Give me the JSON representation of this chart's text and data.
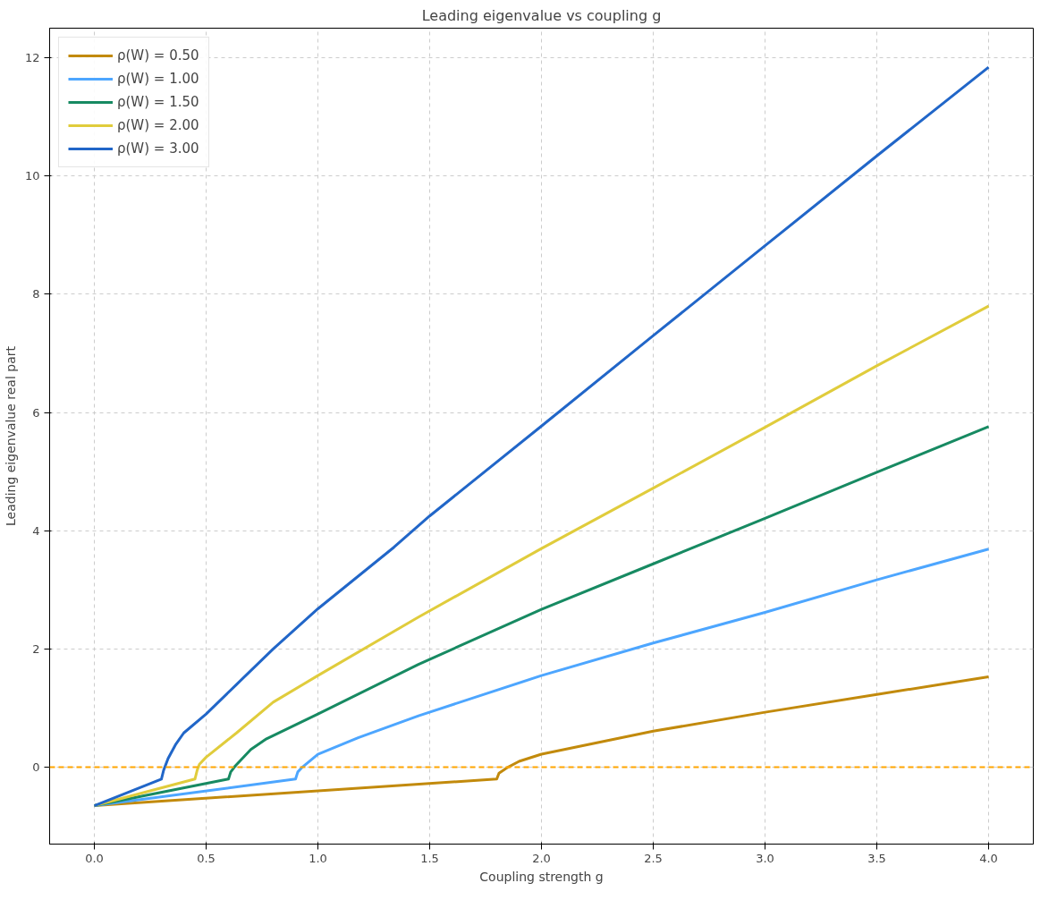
{
  "chart_data": {
    "type": "line",
    "title": "Leading eigenvalue vs coupling g",
    "xlabel": "Coupling strength g",
    "ylabel": "Leading eigenvalue real part",
    "xlim": [
      -0.2,
      4.2
    ],
    "ylim": [
      -1.3,
      12.5
    ],
    "xticks": [
      {
        "value": 0,
        "label": "0.0"
      },
      0.5,
      {
        "value": 1,
        "label": "1.0"
      },
      1.5,
      {
        "value": 2,
        "label": "2.0"
      },
      2.5,
      {
        "value": 3,
        "label": "3.0"
      },
      3.5,
      {
        "value": 4,
        "label": "4.0"
      }
    ],
    "yticks": [
      0,
      2,
      4,
      6,
      8,
      10,
      12
    ],
    "grid": true,
    "legend": "top left",
    "line_style": "solid",
    "series": [
      {
        "name": "ρ(W) = 0.50",
        "color": "#c28a0c",
        "x": [
          0,
          1.8,
          1.81,
          1.85,
          1.9,
          2.0,
          2.5,
          3.0,
          3.5,
          4.0
        ],
        "values": [
          -0.65,
          -0.2,
          -0.1,
          0.0,
          0.1,
          0.22,
          0.61,
          0.93,
          1.23,
          1.53
        ]
      },
      {
        "name": "ρ(W) = 1.00",
        "color": "#4da6ff",
        "x": [
          0,
          0.9,
          0.91,
          0.93,
          1.0,
          1.18,
          1.45,
          2.0,
          2.5,
          3.0,
          3.5,
          4.0
        ],
        "values": [
          -0.65,
          -0.2,
          -0.08,
          0.0,
          0.22,
          0.5,
          0.87,
          1.55,
          2.1,
          2.62,
          3.17,
          3.69
        ]
      },
      {
        "name": "ρ(W) = 1.50",
        "color": "#178a62",
        "x": [
          0,
          0.6,
          0.61,
          0.63,
          0.7,
          0.77,
          1.0,
          1.45,
          2.0,
          2.5,
          3.0,
          3.5,
          4.0
        ],
        "values": [
          -0.65,
          -0.2,
          -0.08,
          0.02,
          0.3,
          0.48,
          0.9,
          1.74,
          2.67,
          3.44,
          4.21,
          4.99,
          5.76
        ]
      },
      {
        "name": "ρ(W) = 2.00",
        "color": "#e0cc3c",
        "x": [
          0,
          0.45,
          0.46,
          0.47,
          0.5,
          0.636,
          0.8,
          1.0,
          1.45,
          2.0,
          2.5,
          3.0,
          3.5,
          4.0
        ],
        "values": [
          -0.65,
          -0.2,
          -0.05,
          0.05,
          0.17,
          0.58,
          1.1,
          1.55,
          2.54,
          3.7,
          4.72,
          5.75,
          6.79,
          7.8
        ]
      },
      {
        "name": "ρ(W) = 3.00",
        "color": "#2166c8",
        "x": [
          0,
          0.3,
          0.31,
          0.33,
          0.363,
          0.4,
          0.5,
          0.636,
          0.8,
          1.0,
          1.34,
          1.5,
          2.0,
          2.5,
          3.0,
          3.5,
          4.0
        ],
        "values": [
          -0.65,
          -0.2,
          -0.05,
          0.15,
          0.38,
          0.58,
          0.9,
          1.4,
          2.0,
          2.68,
          3.72,
          4.25,
          5.77,
          7.3,
          8.82,
          10.34,
          11.84
        ]
      }
    ],
    "ref_lines": [
      {
        "axis": "y",
        "value": 0,
        "color": "#ffa500",
        "line_style": "dashed"
      }
    ]
  }
}
